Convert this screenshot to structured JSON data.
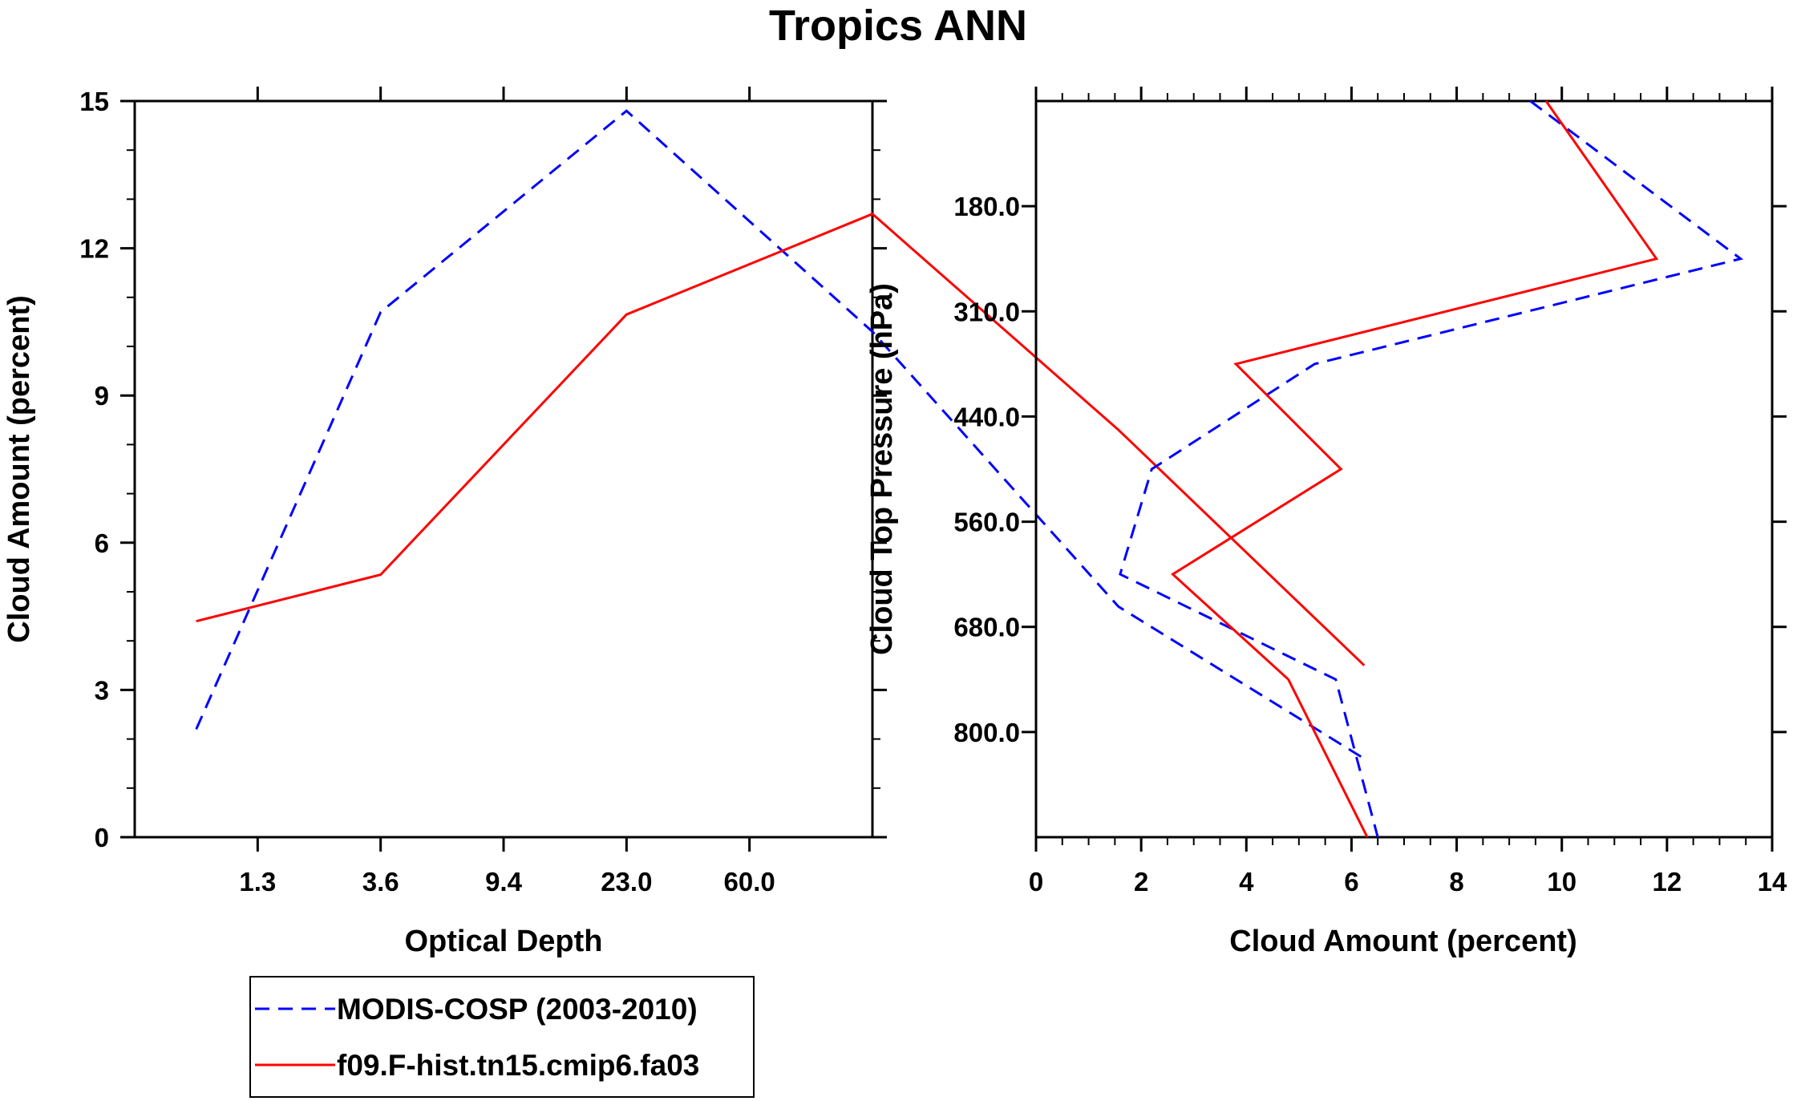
{
  "figure_title": "Tropics ANN",
  "chart_data": [
    {
      "type": "line",
      "xlabel": "Optical Depth",
      "ylabel": "Cloud Amount (percent)",
      "ylim": [
        0,
        15
      ],
      "yticks": [
        "0",
        "3",
        "6",
        "9",
        "12",
        "15"
      ],
      "xtick_labels": [
        "1.3",
        "3.6",
        "9.4",
        "23.0",
        "60.0"
      ],
      "x_bins": 6,
      "series": [
        {
          "name": "MODIS-COSP (2003-2010)",
          "style": "dashed",
          "color": "#0000ff",
          "x": [
            0.5,
            2.0,
            4.0,
            6.0,
            8.0,
            10.0
          ],
          "values": [
            2.2,
            10.7,
            14.8,
            10.3,
            4.7,
            1.6
          ]
        },
        {
          "name": "f09.F-hist.tn15.cmip6.fa03",
          "style": "solid",
          "color": "#ff0000",
          "x": [
            0.5,
            2.0,
            4.0,
            6.0,
            8.0,
            10.0
          ],
          "values": [
            4.4,
            5.35,
            10.65,
            12.7,
            8.3,
            3.5
          ]
        }
      ]
    },
    {
      "type": "line",
      "orientation": "vertical-profile",
      "xlabel": "Cloud Amount (percent)",
      "ylabel": "Cloud Top Pressure (hPa)",
      "xlim": [
        0,
        14
      ],
      "xticks": [
        "0",
        "2",
        "4",
        "6",
        "8",
        "10",
        "12",
        "14"
      ],
      "ytick_labels": [
        "180.0",
        "310.0",
        "440.0",
        "560.0",
        "680.0",
        "800.0"
      ],
      "series": [
        {
          "name": "MODIS-COSP (2003-2010)",
          "style": "dashed",
          "color": "#0000ff",
          "pressure_level": [
            0,
            1,
            2,
            3,
            4,
            5,
            6,
            7
          ],
          "values": [
            9.4,
            13.4,
            5.3,
            2.2,
            1.6,
            5.7,
            6.5
          ]
        },
        {
          "name": "f09.F-hist.tn15.cmip6.fa03",
          "style": "solid",
          "color": "#ff0000",
          "values": [
            9.7,
            11.8,
            3.8,
            5.8,
            2.6,
            4.8,
            6.3
          ]
        }
      ]
    }
  ],
  "legend": [
    {
      "label": "MODIS-COSP (2003-2010)",
      "color": "#0000ff",
      "style": "dashed"
    },
    {
      "label": "f09.F-hist.tn15.cmip6.fa03",
      "color": "#ff0000",
      "style": "solid"
    }
  ]
}
